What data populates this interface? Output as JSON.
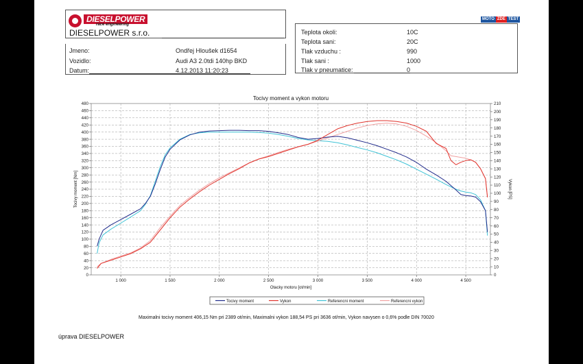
{
  "header": {
    "logo_brand": "DIESELPOWER",
    "logo_tagline": "race engineering",
    "company": "DIESELPOWER s.r.o.",
    "moto_logo": [
      "MOTO",
      "ZDE",
      "TEST"
    ]
  },
  "info": {
    "rows": [
      {
        "label": "Jmeno:",
        "value": "Ondřej Hloušek d1654"
      },
      {
        "label": "Vozidlo:",
        "value": "Audi A3 2.0tdi 140hp BKD"
      },
      {
        "label": "Datum:",
        "value": "4.12.2013 11:20:23"
      }
    ]
  },
  "conditions": {
    "rows": [
      {
        "label": "Teplota okoli:",
        "value": "10C"
      },
      {
        "label": "Teplota sani:",
        "value": "20C"
      },
      {
        "label": "Tlak vzduchu :",
        "value": "990"
      },
      {
        "label": "Tlak sani :",
        "value": "1000"
      },
      {
        "label": "Tlak v pneumatice:",
        "value": "0"
      }
    ]
  },
  "summary": "Maximalni tocivy moment 406,15 Nm pri 2389 ot/min,  Maximalni vykon 188,54 PS pri 3636 ot/min,  Vykon navysen o 0,6% podle DIN 70020",
  "footer": "úprava DIESELPOWER",
  "chart_data": {
    "type": "line",
    "title": "Tocivy moment a vykon motoru",
    "xlabel": "Otacky motoru [ot/min]",
    "ylabel_left": "Tocivy moment [Nm]",
    "ylabel_right": "Vykon [PS]",
    "xlim": [
      700,
      4750
    ],
    "ylim_left": [
      0,
      480
    ],
    "ylim_right": [
      0,
      210
    ],
    "x_ticks": [
      {
        "value": 1000,
        "label": "1 000"
      },
      {
        "value": 1500,
        "label": "1 500"
      },
      {
        "value": 2000,
        "label": "2 000"
      },
      {
        "value": 2500,
        "label": "2 500"
      },
      {
        "value": 3000,
        "label": "3 000"
      },
      {
        "value": 3500,
        "label": "3 500"
      },
      {
        "value": 4000,
        "label": "4 000"
      },
      {
        "value": 4500,
        "label": "4 500"
      }
    ],
    "y_left_ticks": [
      0,
      20,
      40,
      60,
      80,
      100,
      120,
      140,
      160,
      180,
      200,
      220,
      240,
      260,
      280,
      300,
      320,
      340,
      360,
      380,
      400,
      420,
      440,
      460,
      480
    ],
    "y_right_ticks": [
      0,
      10,
      20,
      30,
      40,
      50,
      60,
      70,
      80,
      90,
      100,
      110,
      120,
      130,
      140,
      150,
      160,
      170,
      180,
      190,
      200,
      210
    ],
    "grid": true,
    "legend_position": "bottom",
    "series": [
      {
        "name": "Tocivy moment",
        "axis": "left",
        "color": "#1f2a8a",
        "x": [
          760,
          780,
          820,
          900,
          1000,
          1100,
          1200,
          1250,
          1300,
          1350,
          1400,
          1450,
          1500,
          1600,
          1700,
          1800,
          1900,
          2000,
          2100,
          2200,
          2300,
          2400,
          2500,
          2600,
          2700,
          2800,
          2900,
          3000,
          3100,
          3200,
          3300,
          3400,
          3500,
          3600,
          3700,
          3800,
          3900,
          4000,
          4100,
          4200,
          4300,
          4400,
          4450,
          4500,
          4550,
          4600,
          4650,
          4700,
          4720
        ],
        "y": [
          80,
          100,
          125,
          140,
          155,
          170,
          185,
          200,
          220,
          255,
          295,
          330,
          352,
          378,
          392,
          400,
          403,
          404,
          405,
          405,
          404,
          404,
          402,
          398,
          393,
          385,
          380,
          382,
          386,
          388,
          384,
          377,
          370,
          362,
          352,
          342,
          330,
          315,
          296,
          280,
          262,
          238,
          225,
          222,
          221,
          218,
          205,
          180,
          120
        ]
      },
      {
        "name": "Vykon",
        "axis": "right",
        "color": "#e0322b",
        "x": [
          760,
          800,
          900,
          1000,
          1100,
          1200,
          1300,
          1400,
          1500,
          1600,
          1700,
          1800,
          1900,
          2000,
          2100,
          2200,
          2300,
          2400,
          2500,
          2600,
          2700,
          2800,
          2900,
          3000,
          3100,
          3200,
          3300,
          3400,
          3500,
          3600,
          3700,
          3800,
          3900,
          4000,
          4100,
          4200,
          4300,
          4350,
          4400,
          4450,
          4500,
          4550,
          4600,
          4650,
          4700,
          4720
        ],
        "y": [
          8,
          14,
          18,
          22,
          26,
          32,
          40,
          55,
          70,
          83,
          93,
          102,
          110,
          117,
          124,
          130,
          137,
          142,
          145,
          149,
          153,
          157,
          160,
          165,
          172,
          179,
          183,
          186,
          188,
          189,
          189,
          188,
          186,
          182,
          176,
          161,
          155,
          140,
          135,
          138,
          140,
          141,
          138,
          130,
          118,
          95
        ]
      },
      {
        "name": "Referencni moment",
        "axis": "left",
        "color": "#3fc3d6",
        "x": [
          760,
          780,
          820,
          900,
          1000,
          1100,
          1200,
          1250,
          1300,
          1350,
          1400,
          1450,
          1500,
          1600,
          1700,
          1800,
          1900,
          2000,
          2100,
          2200,
          2300,
          2400,
          2500,
          2600,
          2700,
          2800,
          2900,
          3000,
          3100,
          3200,
          3300,
          3400,
          3500,
          3600,
          3700,
          3800,
          3900,
          4000,
          4100,
          4200,
          4300,
          4400,
          4450,
          4500,
          4550,
          4600,
          4650,
          4700,
          4720
        ],
        "y": [
          60,
          90,
          112,
          128,
          145,
          162,
          180,
          198,
          222,
          262,
          303,
          336,
          356,
          380,
          393,
          398,
          400,
          400,
          400,
          400,
          400,
          399,
          397,
          393,
          388,
          382,
          378,
          376,
          374,
          370,
          364,
          357,
          350,
          342,
          332,
          322,
          310,
          296,
          282,
          268,
          253,
          240,
          235,
          232,
          230,
          225,
          210,
          180,
          110
        ]
      },
      {
        "name": "Referencni vykon",
        "axis": "right",
        "color": "#f0a0a0",
        "x": [
          760,
          800,
          900,
          1000,
          1100,
          1200,
          1300,
          1400,
          1500,
          1600,
          1700,
          1800,
          1900,
          2000,
          2100,
          2200,
          2300,
          2400,
          2500,
          2600,
          2700,
          2800,
          2900,
          3000,
          3100,
          3200,
          3300,
          3400,
          3500,
          3600,
          3700,
          3800,
          3900,
          4000,
          4100,
          4200,
          4300,
          4350,
          4400,
          4450,
          4500,
          4550,
          4600,
          4650,
          4700,
          4720
        ],
        "y": [
          10,
          14,
          19,
          23,
          27,
          33,
          42,
          58,
          72,
          85,
          95,
          104,
          112,
          119,
          125,
          131,
          137,
          142,
          146,
          150,
          154,
          157,
          160,
          164,
          168,
          172,
          176,
          180,
          183,
          185,
          186,
          185,
          182,
          177,
          170,
          162,
          152,
          146,
          145,
          144,
          143,
          141,
          138,
          130,
          118,
          96
        ]
      }
    ]
  }
}
